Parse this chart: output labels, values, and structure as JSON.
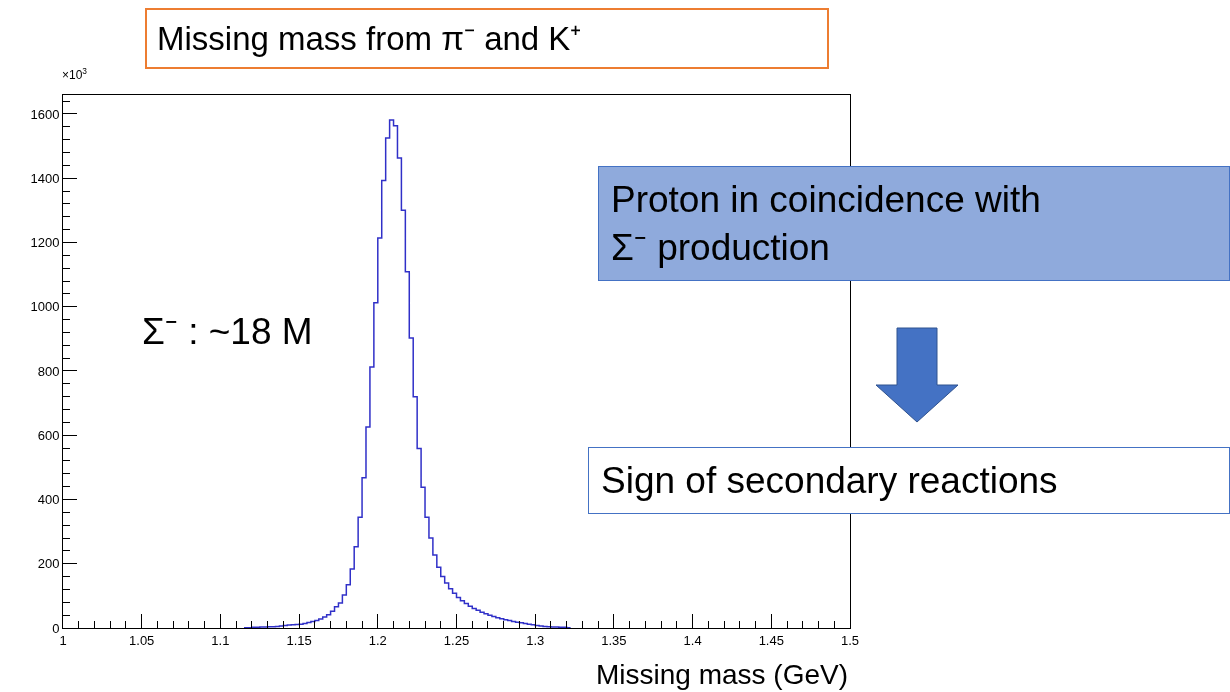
{
  "chart_data": {
    "type": "histogram",
    "title": "Missing mass from π⁻ and K⁺",
    "xlabel": "Missing mass (GeV)",
    "annotations": [
      "×10$^{3}$",
      "Σ⁻ : ~18 M",
      "Proton in coincidence with Σ⁻ production",
      "Sign of secondary reactions"
    ],
    "bins": [
      1.115,
      1.1175,
      1.12,
      1.1225,
      1.125,
      1.1275,
      1.13,
      1.1325,
      1.135,
      1.1375,
      1.14,
      1.1425,
      1.145,
      1.1475,
      1.15,
      1.1525,
      1.155,
      1.1575,
      1.16,
      1.1625,
      1.165,
      1.1675,
      1.17,
      1.1725,
      1.175,
      1.1775,
      1.18,
      1.1825,
      1.185,
      1.1875,
      1.19,
      1.1925,
      1.195,
      1.1975,
      1.2,
      1.2025,
      1.205,
      1.2075,
      1.21,
      1.2125,
      1.215,
      1.2175,
      1.22,
      1.2225,
      1.225,
      1.2275,
      1.23,
      1.2325,
      1.235,
      1.2375,
      1.24,
      1.2425,
      1.245,
      1.2475,
      1.25,
      1.2525,
      1.255,
      1.2575,
      1.26,
      1.2625,
      1.265,
      1.2675,
      1.27,
      1.2725,
      1.275,
      1.2775,
      1.28,
      1.2825,
      1.285,
      1.2875,
      1.29,
      1.2925,
      1.295,
      1.2975,
      1.3,
      1.3025,
      1.305,
      1.3075,
      1.31,
      1.3125,
      1.315,
      1.3175,
      1.32,
      1.3225
    ],
    "values": [
      1,
      1,
      2,
      2,
      3,
      3,
      4,
      4,
      5,
      6,
      8,
      9,
      10,
      11,
      12,
      14,
      17,
      20,
      23,
      28,
      34,
      41,
      52,
      66,
      78,
      103,
      135,
      184,
      253,
      345,
      468,
      626,
      812,
      1012,
      1214,
      1393,
      1525,
      1581,
      1563,
      1463,
      1300,
      1109,
      903,
      720,
      559,
      438,
      345,
      280,
      227,
      189,
      160,
      140,
      122,
      108,
      95,
      85,
      76,
      68,
      61,
      55,
      49,
      44,
      40,
      36,
      32,
      29,
      26,
      23,
      20,
      18,
      16,
      14,
      12,
      10,
      8,
      6,
      5,
      4,
      3,
      3,
      2,
      2,
      1
    ],
    "color": "#3030c8",
    "xlim": [
      1,
      1.5
    ],
    "xticks": [
      1,
      1.05,
      1.1,
      1.15,
      1.2,
      1.25,
      1.3,
      1.35,
      1.4,
      1.45,
      1.5
    ],
    "ylim": [
      0,
      1659
    ],
    "yticks": [
      0,
      200,
      400,
      600,
      800,
      1000,
      1200,
      1400,
      1600
    ]
  }
}
